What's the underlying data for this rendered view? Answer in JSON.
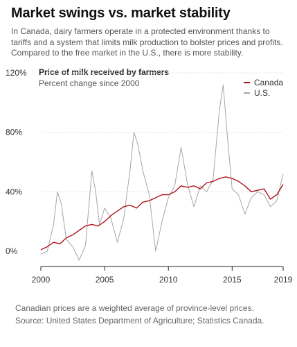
{
  "headline": "Market swings vs. market stability",
  "dek": "In Canada, dairy farmers operate in a protected environment thanks to tariffs and a system that limits milk production to bolster prices and profits. Compared to the free market in the U.S., there is more stability.",
  "notes": {
    "line1": "Canadian prices are a weighted average of province-level prices.",
    "line2": "Source: United States Department of Agriculture; Statistics Canada."
  },
  "colors": {
    "canada": "#b0121c",
    "us": "#a6a6a6",
    "grid": "#dcdcdc",
    "axis": "#222222"
  },
  "chart_data": {
    "type": "line",
    "title": "Price of milk received by farmers",
    "subtitle": "Percent change since 2000",
    "xlabel": "",
    "ylabel": "",
    "xlim": [
      2000,
      2019
    ],
    "ylim": [
      -5,
      120
    ],
    "x_ticks": [
      2000,
      2005,
      2010,
      2015,
      2019
    ],
    "y_ticks": [
      0,
      40,
      80,
      120
    ],
    "y_tick_labels": [
      "0%",
      "40%",
      "80%",
      "120%"
    ],
    "grid": true,
    "legend": "top-right",
    "series": [
      {
        "name": "Canada",
        "color": "#b0121c",
        "x": [
          2000,
          2000.5,
          2001,
          2001.5,
          2002,
          2002.5,
          2003,
          2003.5,
          2004,
          2004.5,
          2005,
          2005.5,
          2006,
          2006.5,
          2007,
          2007.5,
          2008,
          2008.5,
          2009,
          2009.5,
          2010,
          2010.5,
          2011,
          2011.5,
          2012,
          2012.5,
          2013,
          2013.5,
          2014,
          2014.5,
          2015,
          2015.5,
          2016,
          2016.5,
          2017,
          2017.5,
          2018,
          2018.5,
          2019
        ],
        "values": [
          1,
          3,
          6,
          5,
          9,
          11,
          14,
          17,
          18,
          17,
          20,
          24,
          27,
          30,
          31,
          29,
          33,
          34,
          36,
          38,
          38,
          40,
          44,
          43,
          44,
          42,
          46,
          47,
          49,
          50,
          49,
          47,
          44,
          40,
          41,
          42,
          35,
          38,
          45
        ]
      },
      {
        "name": "U.S.",
        "color": "#a6a6a6",
        "x": [
          2000,
          2000.5,
          2001,
          2001.3,
          2001.6,
          2002,
          2002.5,
          2003,
          2003.5,
          2004,
          2004.3,
          2004.6,
          2005,
          2005.5,
          2006,
          2006.5,
          2007,
          2007.3,
          2007.6,
          2008,
          2008.5,
          2009,
          2009.5,
          2010,
          2010.5,
          2011,
          2011.5,
          2012,
          2012.5,
          2013,
          2013.5,
          2014,
          2014.3,
          2014.6,
          2015,
          2015.5,
          2016,
          2016.5,
          2017,
          2017.5,
          2018,
          2018.5,
          2019
        ],
        "values": [
          -2,
          0,
          18,
          40,
          32,
          8,
          3,
          -6,
          4,
          54,
          40,
          18,
          29,
          22,
          6,
          22,
          55,
          80,
          72,
          54,
          38,
          0,
          20,
          36,
          44,
          70,
          45,
          30,
          44,
          40,
          48,
          95,
          112,
          80,
          42,
          38,
          25,
          36,
          40,
          38,
          30,
          34,
          52
        ]
      }
    ]
  }
}
